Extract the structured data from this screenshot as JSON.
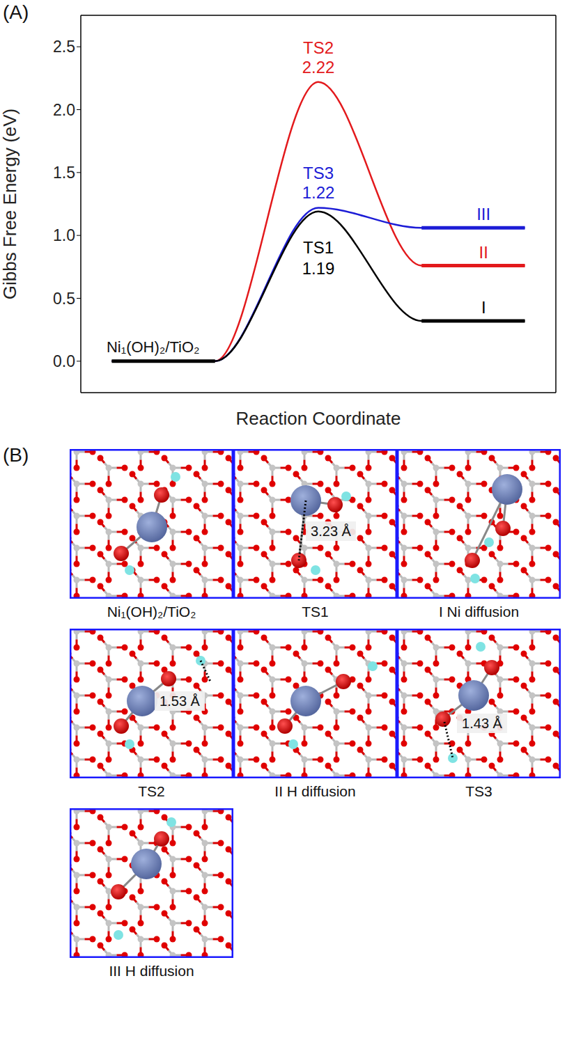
{
  "chart_data": {
    "type": "line",
    "panel_label": "(A)",
    "x_label": "Reaction Coordinate",
    "y_label": "Gibbs Free Energy (eV)",
    "baseline_label": "Ni₁(OH)₂/TiO₂",
    "x": [
      0,
      1,
      2,
      3,
      4
    ],
    "xlim": [
      -0.3,
      4.3
    ],
    "ylim": [
      -0.25,
      2.75
    ],
    "yticks": [
      {
        "value": 0,
        "label": "0.0"
      },
      0.5,
      {
        "value": 1,
        "label": "1.0"
      },
      1.5,
      {
        "value": 2,
        "label": "2.0"
      },
      2.5
    ],
    "tick_labels": "y",
    "grid": false,
    "series": [
      {
        "name": "TS2",
        "product": "II",
        "color": "#e3191c",
        "values": [
          0,
          0,
          2.22,
          0.76,
          0.76
        ]
      },
      {
        "name": "TS3",
        "product": "III",
        "color": "#1c1cd6",
        "values": [
          0,
          0,
          1.22,
          1.06,
          1.06
        ]
      },
      {
        "name": "TS1",
        "product": "I",
        "color": "#000000",
        "values": [
          0,
          0,
          1.19,
          0.32,
          0.32
        ]
      }
    ]
  },
  "structures": {
    "panel_label": "(B)",
    "items": [
      {
        "caption": "Ni₁(OH)₂/TiO₂"
      },
      {
        "caption": "TS1",
        "distance": "3.23 Å"
      },
      {
        "caption": "I Ni diffusion"
      },
      {
        "caption": "TS2",
        "distance": "1.53 Å"
      },
      {
        "caption": "II H diffusion"
      },
      {
        "caption": "TS3",
        "distance": "1.43 Å"
      },
      {
        "caption": "III H diffusion"
      }
    ]
  }
}
